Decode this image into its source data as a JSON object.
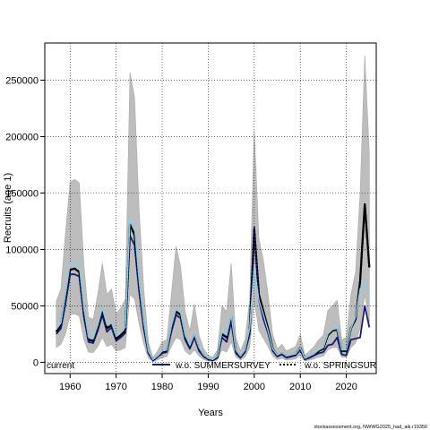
{
  "chart_data": {
    "type": "line",
    "title": "",
    "xlabel": "Years",
    "ylabel": "Recruits (age 1)",
    "xlim": [
      1954.5,
      2026.5
    ],
    "ylim": [
      -10000,
      283000
    ],
    "x_ticks": [
      1960,
      1970,
      1980,
      1990,
      2000,
      2010,
      2020
    ],
    "x_tick_labels": [
      "1960",
      "1970",
      "1980",
      "1990",
      "2000",
      "2010",
      "2020"
    ],
    "y_ticks": [
      0,
      50000,
      100000,
      150000,
      200000,
      250000
    ],
    "y_tick_labels": [
      "0",
      "50000",
      "100000",
      "150000",
      "200000",
      "250000"
    ],
    "grid": true,
    "legend_position": "bottom",
    "legend": [
      {
        "label": "current",
        "color": "#000000",
        "style": "solid",
        "swatch": false
      },
      {
        "label": "w.o. SUMMERSURVEY",
        "color": "#1a1a6e",
        "style": "solid",
        "swatch": true
      },
      {
        "label": "w.o. SPRINGSURVEY",
        "color": "#000000",
        "style": "dotted",
        "swatch": true
      }
    ],
    "footer": "stockassessment.org, NWWG2025_had_aik.r19356",
    "colors": {
      "band": "#bdbdbd",
      "band_edge": "#a8a8a8",
      "current": "#000000",
      "summer": "#1a1a6e",
      "spring": "#000000",
      "highlight": "#87ceeb"
    },
    "series": [
      {
        "name": "current",
        "x": [
          1957,
          1958,
          1959,
          1960,
          1961,
          1962,
          1963,
          1964,
          1965,
          1966,
          1967,
          1968,
          1969,
          1970,
          1971,
          1972,
          1973,
          1974,
          1975,
          1976,
          1977,
          1978,
          1979,
          1980,
          1981,
          1982,
          1983,
          1984,
          1985,
          1986,
          1987,
          1988,
          1989,
          1990,
          1991,
          1992,
          1993,
          1994,
          1995,
          1996,
          1997,
          1998,
          1999,
          2000,
          2001,
          2002,
          2003,
          2004,
          2005,
          2006,
          2007,
          2008,
          2009,
          2010,
          2011,
          2012,
          2013,
          2014,
          2015,
          2016,
          2017,
          2018,
          2019,
          2020,
          2021,
          2022,
          2023,
          2024,
          2025
        ],
        "y": [
          27000,
          33000,
          58000,
          82000,
          83000,
          80000,
          44000,
          20000,
          19000,
          30000,
          45000,
          30000,
          33000,
          21000,
          24000,
          28000,
          122000,
          113000,
          68000,
          33000,
          9000,
          2000,
          5000,
          9000,
          10000,
          30000,
          45000,
          42000,
          22000,
          14000,
          24000,
          12000,
          6000,
          3000,
          2000,
          5000,
          25000,
          22000,
          40000,
          10000,
          5000,
          10000,
          28000,
          118000,
          60000,
          45000,
          30000,
          12000,
          6000,
          8000,
          5000,
          6000,
          7000,
          13000,
          3000,
          5000,
          7000,
          10000,
          12000,
          24000,
          28000,
          29000,
          10000,
          10000,
          30000,
          38000,
          72000,
          140000,
          84000
        ]
      },
      {
        "name": "w.o. SUMMERSURVEY",
        "x": [
          1957,
          1958,
          1959,
          1960,
          1961,
          1962,
          1963,
          1964,
          1965,
          1966,
          1967,
          1968,
          1969,
          1970,
          1971,
          1972,
          1973,
          1974,
          1975,
          1976,
          1977,
          1978,
          1979,
          1980,
          1981,
          1982,
          1983,
          1984,
          1985,
          1986,
          1987,
          1988,
          1989,
          1990,
          1991,
          1992,
          1993,
          1994,
          1995,
          1996,
          1997,
          1998,
          1999,
          2000,
          2001,
          2002,
          2003,
          2004,
          2005,
          2006,
          2007,
          2008,
          2009,
          2010,
          2011,
          2012,
          2013,
          2014,
          2015,
          2016,
          2017,
          2018,
          2019,
          2020,
          2021,
          2022,
          2023,
          2024,
          2025
        ],
        "y": [
          25000,
          30000,
          52000,
          78000,
          78000,
          76000,
          40000,
          18000,
          17000,
          28000,
          42000,
          27000,
          31000,
          19000,
          22000,
          26000,
          112000,
          104000,
          63000,
          30000,
          8000,
          1500,
          4500,
          8000,
          9000,
          27000,
          42000,
          39000,
          20000,
          12000,
          22000,
          10000,
          5000,
          2500,
          1500,
          4000,
          22000,
          18000,
          36000,
          8000,
          4000,
          9000,
          25000,
          120000,
          55000,
          38000,
          26000,
          10000,
          5000,
          7000,
          4000,
          5000,
          6000,
          11000,
          2500,
          4000,
          6000,
          8000,
          9000,
          15000,
          16000,
          22000,
          7000,
          6000,
          20000,
          21000,
          22000,
          50000,
          31000
        ]
      },
      {
        "name": "w.o. SPRINGSURVEY",
        "x": [
          1957,
          1958,
          1959,
          1960,
          1961,
          1962,
          1963,
          1964,
          1965,
          1966,
          1967,
          1968,
          1969,
          1970,
          1971,
          1972,
          1973,
          1974,
          1975,
          1976,
          1977,
          1978,
          1979,
          1980,
          1981,
          1982,
          1983,
          1984,
          1985,
          1986,
          1987,
          1988,
          1989,
          1990,
          1991,
          1992,
          1993,
          1994,
          1995,
          1996,
          1997,
          1998,
          1999,
          2000,
          2001,
          2002,
          2003,
          2004,
          2005,
          2006,
          2007,
          2008,
          2009,
          2010,
          2011,
          2012,
          2013,
          2014,
          2015,
          2016,
          2017,
          2018,
          2019,
          2020,
          2021,
          2022,
          2023,
          2024,
          2025
        ],
        "y": [
          27000,
          33000,
          58000,
          82000,
          83000,
          80000,
          44000,
          20000,
          19000,
          30000,
          45000,
          30000,
          33000,
          21000,
          24000,
          28000,
          122000,
          113000,
          68000,
          33000,
          9000,
          2000,
          5000,
          9000,
          10000,
          30000,
          45000,
          42000,
          22000,
          14000,
          24000,
          12000,
          6000,
          3000,
          2000,
          5000,
          25000,
          22000,
          40000,
          10000,
          5000,
          10000,
          28000,
          118000,
          60000,
          45000,
          30000,
          12000,
          6000,
          8000,
          5000,
          6000,
          7000,
          13000,
          3000,
          5000,
          7000,
          10000,
          12000,
          24000,
          28000,
          29000,
          10000,
          10000,
          30000,
          38000,
          72000,
          140000,
          84000
        ]
      },
      {
        "name": "",
        "x": [
          1957,
          1958,
          1959,
          1960,
          1961,
          1962,
          1963,
          1964,
          1965,
          1966,
          1967,
          1968,
          1969,
          1970,
          1971,
          1972,
          1973,
          1974,
          1975,
          1976,
          1977,
          1978,
          1979,
          1980,
          1981,
          1982,
          1983,
          1984,
          1985,
          1986,
          1987,
          1988,
          1989,
          1990,
          1991,
          1992,
          1993,
          1994,
          1995,
          1996,
          1997,
          1998,
          1999,
          2000,
          2001,
          2002,
          2003,
          2004,
          2005,
          2006,
          2007,
          2008,
          2009,
          2010,
          2011,
          2012,
          2013,
          2014,
          2015,
          2016,
          2017,
          2018,
          2019,
          2020,
          2021,
          2022,
          2023,
          2024,
          2025
        ],
        "y": [
          29000,
          35000,
          60000,
          88000,
          89000,
          86000,
          48000,
          22000,
          21000,
          33000,
          48000,
          33000,
          35000,
          23000,
          27000,
          31000,
          128000,
          120000,
          72000,
          36000,
          10000,
          2500,
          5500,
          10000,
          11000,
          32000,
          47000,
          44000,
          24000,
          15000,
          25000,
          13000,
          6500,
          3500,
          2500,
          5500,
          27000,
          24000,
          42000,
          11000,
          5500,
          11000,
          30000,
          85000,
          55000,
          42000,
          28000,
          12000,
          6500,
          8500,
          5500,
          6500,
          7500,
          13000,
          3500,
          5500,
          7500,
          11000,
          13000,
          25000,
          29000,
          30000,
          11000,
          11000,
          30000,
          40000,
          65000,
          72000,
          60000
        ]
      }
    ],
    "band": {
      "x": [
        1957,
        1958,
        1959,
        1960,
        1961,
        1962,
        1963,
        1964,
        1965,
        1966,
        1967,
        1968,
        1969,
        1970,
        1971,
        1972,
        1973,
        1974,
        1975,
        1976,
        1977,
        1978,
        1979,
        1980,
        1981,
        1982,
        1983,
        1984,
        1985,
        1986,
        1987,
        1988,
        1989,
        1990,
        1991,
        1992,
        1993,
        1994,
        1995,
        1996,
        1997,
        1998,
        1999,
        2000,
        2001,
        2002,
        2003,
        2004,
        2005,
        2006,
        2007,
        2008,
        2009,
        2010,
        2011,
        2012,
        2013,
        2014,
        2015,
        2016,
        2017,
        2018,
        2019,
        2020,
        2021,
        2022,
        2023,
        2024,
        2025
      ],
      "lower": [
        13000,
        16000,
        25000,
        42000,
        43000,
        41000,
        20000,
        9000,
        8500,
        14000,
        22000,
        14000,
        16000,
        10000,
        11000,
        13000,
        60000,
        56000,
        34000,
        16000,
        4000,
        500,
        2000,
        4000,
        5000,
        14000,
        22000,
        20000,
        10000,
        6500,
        11000,
        5500,
        2500,
        1200,
        800,
        2000,
        11000,
        9000,
        18000,
        4500,
        2000,
        4500,
        13000,
        55000,
        28000,
        21000,
        14000,
        5500,
        2500,
        3500,
        2000,
        2500,
        3000,
        6000,
        1200,
        2000,
        3000,
        4500,
        5500,
        11000,
        13000,
        13000,
        4500,
        4500,
        13000,
        17000,
        30000,
        60000,
        35000
      ],
      "upper": [
        54000,
        65000,
        115000,
        160000,
        162000,
        159000,
        86000,
        40000,
        38000,
        60000,
        88000,
        60000,
        65000,
        43000,
        48000,
        56000,
        257000,
        235000,
        135000,
        65000,
        18000,
        4000,
        10000,
        18000,
        20000,
        60000,
        103000,
        85000,
        45000,
        28000,
        52000,
        24000,
        12000,
        6000,
        4500,
        11000,
        50000,
        45000,
        88000,
        22000,
        10000,
        20000,
        56000,
        206000,
        110000,
        90000,
        60000,
        25000,
        12000,
        16000,
        10000,
        12000,
        14000,
        25000,
        6000,
        10000,
        14000,
        20000,
        24000,
        46000,
        50000,
        55000,
        20000,
        22000,
        60000,
        80000,
        150000,
        272000,
        185000
      ]
    }
  }
}
